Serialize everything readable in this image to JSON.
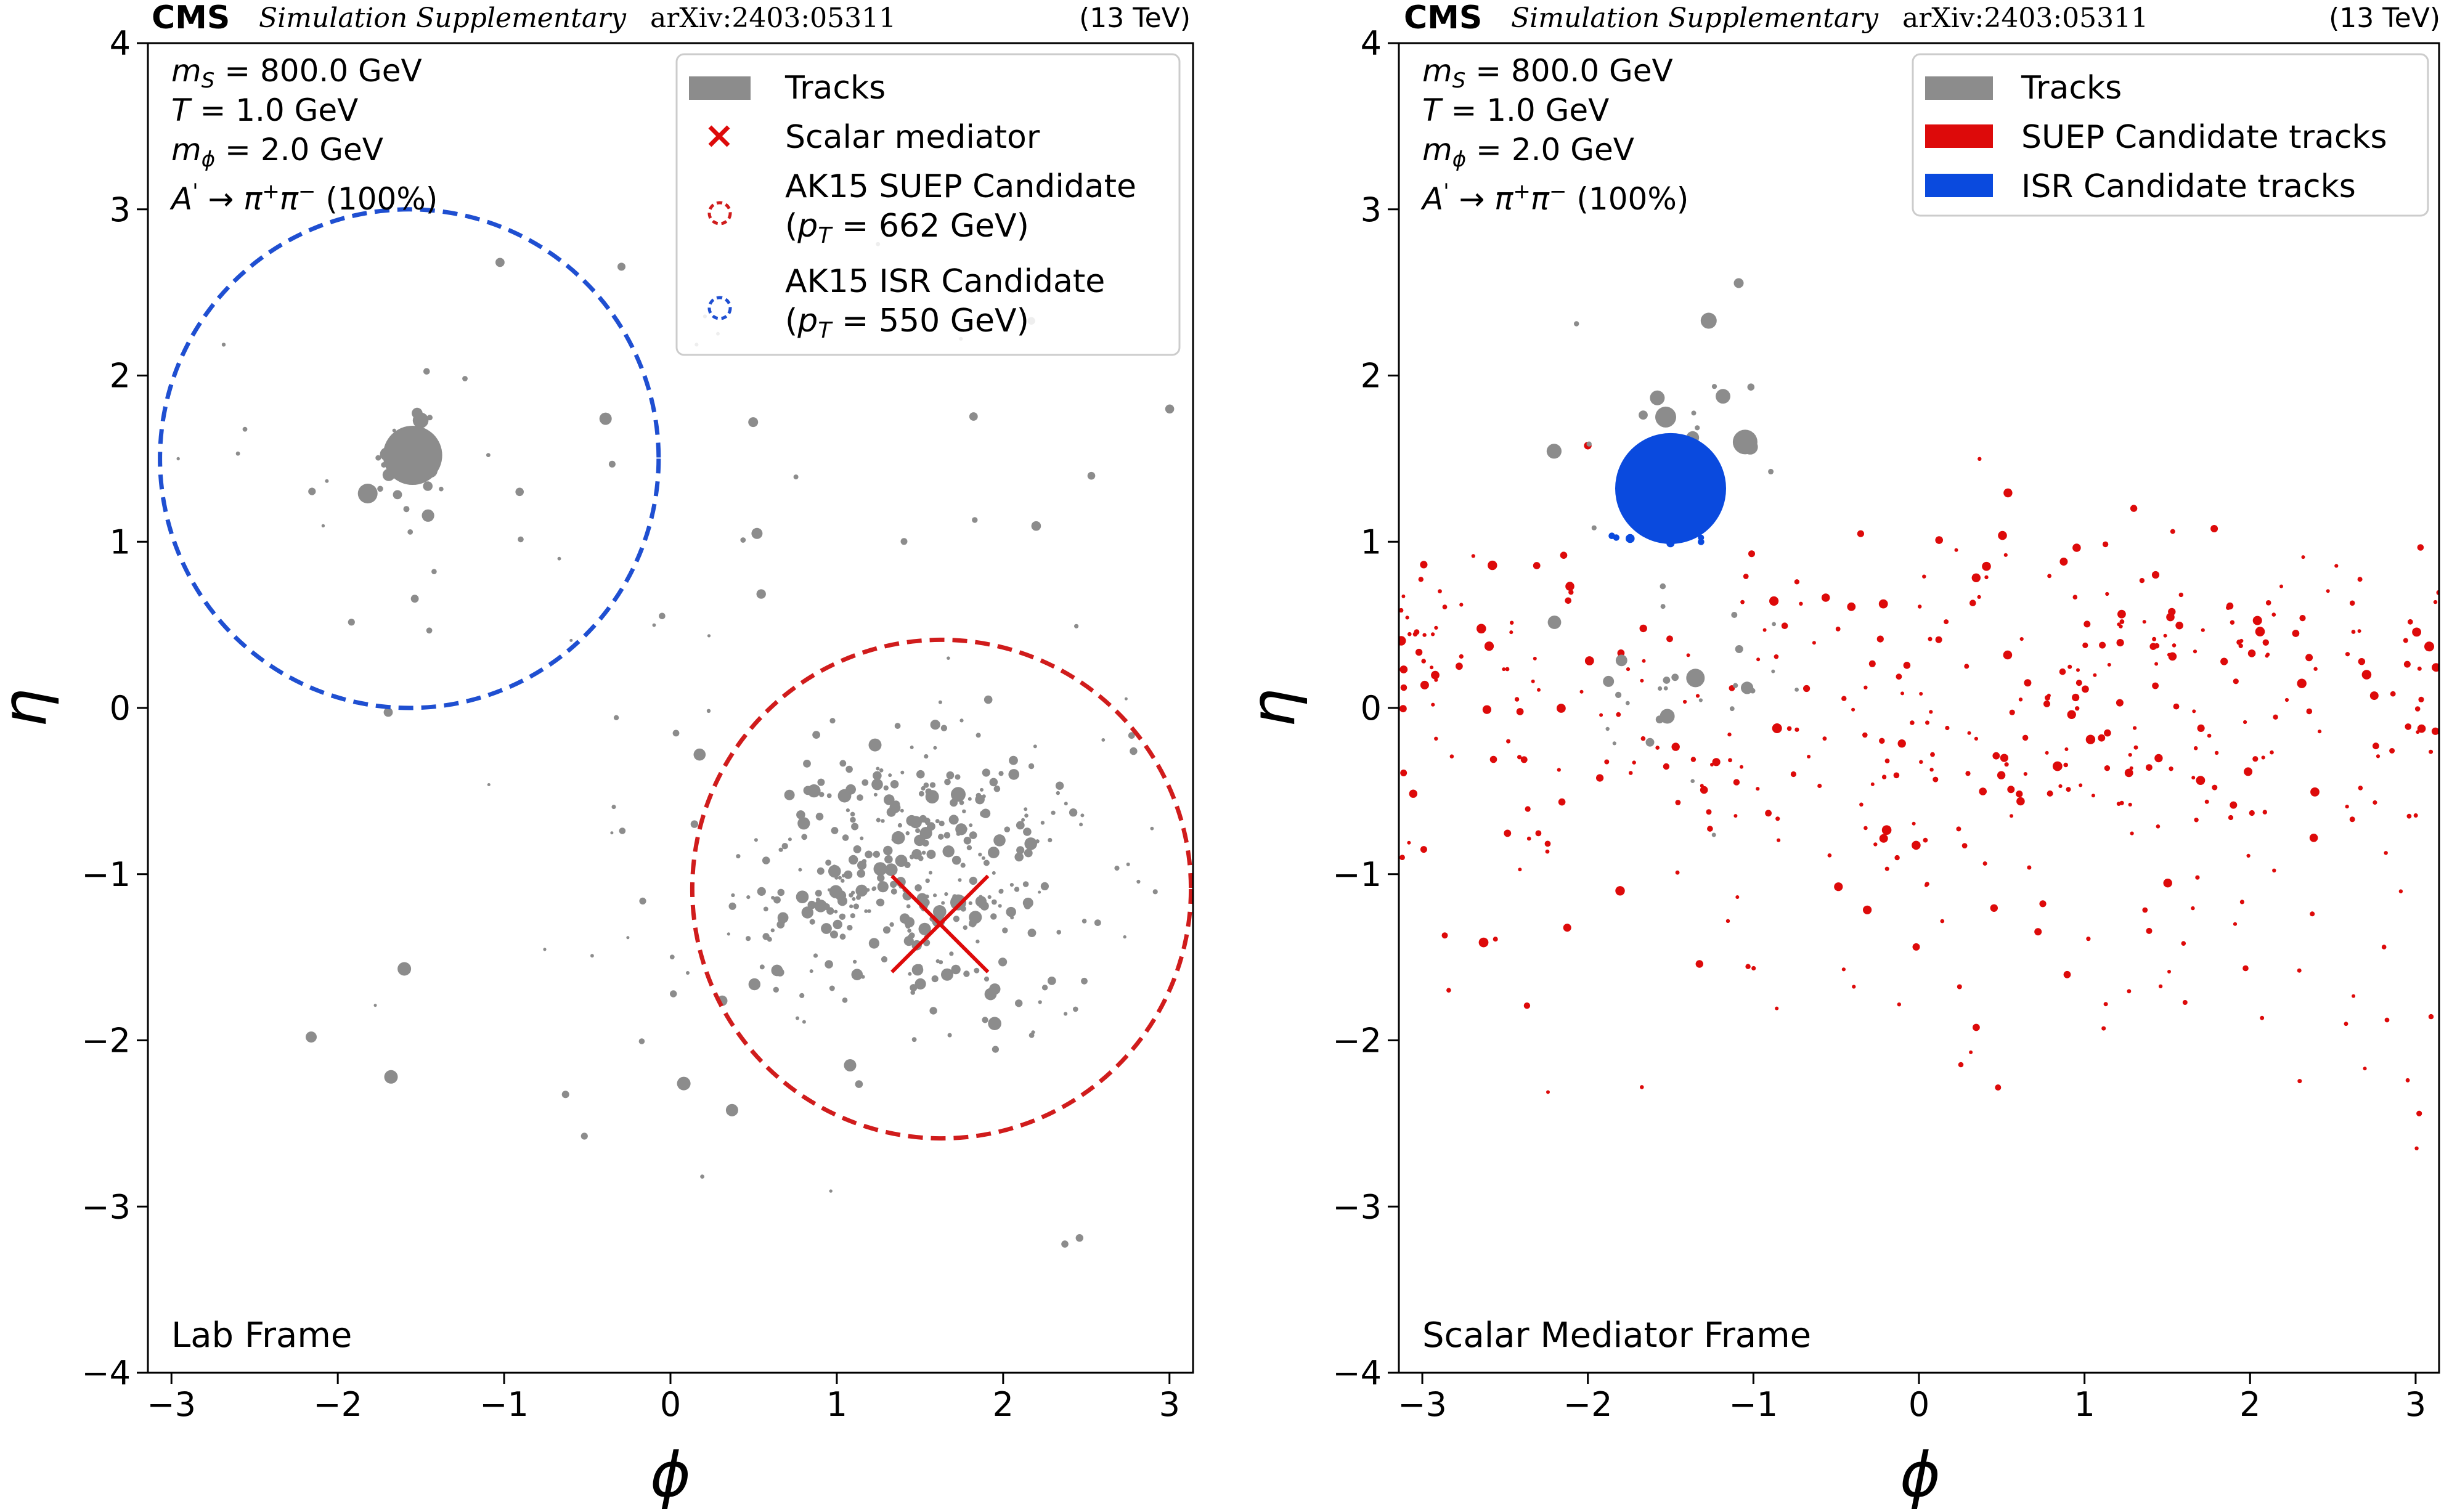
{
  "colors": {
    "tracks": "#8c8c8c",
    "suep": "#dd0a0a",
    "isr": "#0a4ade",
    "suep_circle": "#d01c1c",
    "isr_circle": "#1f4fd1"
  },
  "chart_data": [
    {
      "type": "scatter",
      "header_left": "CMS",
      "header_mid": "Simulation Supplementary",
      "header_arxiv": "arXiv:2403:05311",
      "header_right": "(13 TeV)",
      "xlabel": "ϕ",
      "ylabel": "η",
      "xlim": [
        -3.1416,
        3.1416
      ],
      "ylim": [
        -4,
        4
      ],
      "xticks": [
        -3,
        -2,
        -1,
        0,
        1,
        2,
        3
      ],
      "yticks": [
        -4,
        -3,
        -2,
        -1,
        0,
        1,
        2,
        3,
        4
      ],
      "xticklabels": [
        "−3",
        "−2",
        "−1",
        "0",
        "1",
        "2",
        "3"
      ],
      "yticklabels": [
        "−4",
        "−3",
        "−2",
        "−1",
        "0",
        "1",
        "2",
        "3",
        "4"
      ],
      "grid": false,
      "info": [
        "mS = 800.0 GeV",
        "T = 1.0 GeV",
        "mϕ = 2.0 GeV",
        "A' → π⁺π⁻ (100%)"
      ],
      "frame_label": "Lab Frame",
      "legend_position": "top-right",
      "legend": [
        {
          "label": "Tracks",
          "kind": "patch",
          "color": "#8c8c8c"
        },
        {
          "label": "Scalar mediator",
          "kind": "cross",
          "color": "#dd0a0a"
        },
        {
          "label": "AK15 SUEP Candidate",
          "sub": "(pT = 662 GeV)",
          "kind": "dashed-circle",
          "color": "#d01c1c"
        },
        {
          "label": "AK15 ISR Candidate",
          "sub": "(pT = 550 GeV)",
          "kind": "dashed-circle",
          "color": "#1f4fd1"
        }
      ],
      "circles": [
        {
          "name": "AK15 ISR Candidate",
          "phi": -1.57,
          "eta": 1.5,
          "r": 1.5
        },
        {
          "name": "AK15 SUEP Candidate",
          "phi": 1.63,
          "eta": -1.09,
          "r": 1.5
        }
      ],
      "mediator": {
        "phi": 1.62,
        "eta": -1.3
      },
      "seed": 11,
      "clusters": [
        {
          "name": "Tracks",
          "group": "tracks",
          "n": 360,
          "phi": 1.5,
          "eta": -1.0,
          "sphi": 0.55,
          "seta": 0.42,
          "rmin": 3,
          "rmax": 11
        },
        {
          "name": "Tracks",
          "group": "tracks",
          "n": 26,
          "phi": -1.55,
          "eta": 1.5,
          "sphi": 0.12,
          "seta": 0.12,
          "rmin": 3,
          "rmax": 13
        },
        {
          "name": "Tracks",
          "group": "tracks",
          "n": 14,
          "phi": -1.55,
          "eta": 1.5,
          "sphi": 0.45,
          "seta": 0.45,
          "rmin": 3,
          "rmax": 7
        },
        {
          "name": "Tracks",
          "group": "tracks",
          "n": 70,
          "phi": 0.0,
          "eta": 0.0,
          "sphi": 1.8,
          "seta": 1.8,
          "rmin": 2.5,
          "rmax": 8
        }
      ],
      "tracks_big": [
        {
          "phi": -1.55,
          "eta": 1.52,
          "r": 48
        },
        {
          "phi": -1.82,
          "eta": 1.29,
          "r": 16
        },
        {
          "phi": 1.73,
          "eta": -1.17,
          "r": 13
        },
        {
          "phi": 1.73,
          "eta": -0.52,
          "r": 12
        },
        {
          "phi": -1.6,
          "eta": -1.57,
          "r": 11
        },
        {
          "phi": -1.68,
          "eta": -2.22,
          "r": 11
        },
        {
          "phi": 0.08,
          "eta": -2.26,
          "r": 11
        },
        {
          "phi": 0.37,
          "eta": -2.42,
          "r": 10
        },
        {
          "phi": 1.08,
          "eta": -2.15,
          "r": 10
        },
        {
          "phi": 0.52,
          "eta": 1.05,
          "r": 9
        },
        {
          "phi": -0.39,
          "eta": 1.74,
          "r": 10
        },
        {
          "phi": -2.16,
          "eta": -1.98,
          "r": 9
        },
        {
          "phi": 1.35,
          "eta": -0.6,
          "r": 9
        }
      ]
    },
    {
      "type": "scatter",
      "header_left": "CMS",
      "header_mid": "Simulation Supplementary",
      "header_arxiv": "arXiv:2403:05311",
      "header_right": "(13 TeV)",
      "xlabel": "ϕ",
      "ylabel": "η",
      "xlim": [
        -3.1416,
        3.1416
      ],
      "ylim": [
        -4,
        4
      ],
      "xticks": [
        -3,
        -2,
        -1,
        0,
        1,
        2,
        3
      ],
      "yticks": [
        -4,
        -3,
        -2,
        -1,
        0,
        1,
        2,
        3,
        4
      ],
      "xticklabels": [
        "−3",
        "−2",
        "−1",
        "0",
        "1",
        "2",
        "3"
      ],
      "yticklabels": [
        "−4",
        "−3",
        "−2",
        "−1",
        "0",
        "1",
        "2",
        "3",
        "4"
      ],
      "grid": false,
      "info": [
        "mS = 800.0 GeV",
        "T = 1.0 GeV",
        "mϕ = 2.0 GeV",
        "A' → π⁺π⁻ (100%)"
      ],
      "frame_label": "Scalar Mediator Frame",
      "legend_position": "top-right",
      "legend": [
        {
          "label": "Tracks",
          "kind": "patch",
          "color": "#8c8c8c"
        },
        {
          "label": "SUEP Candidate tracks",
          "kind": "patch",
          "color": "#dd0a0a"
        },
        {
          "label": "ISR Candidate tracks",
          "kind": "patch",
          "color": "#0a4ade"
        }
      ],
      "seed": 29,
      "clusters": [
        {
          "name": "SUEP Candidate tracks",
          "group": "suep",
          "n": 300,
          "phi": 0.3,
          "eta": -0.2,
          "sphi": 1.75,
          "seta": 0.6,
          "rmin": 3,
          "rmax": 8
        },
        {
          "name": "SUEP Candidate tracks",
          "group": "suep",
          "n": 45,
          "phi": 0.3,
          "eta": -1.6,
          "sphi": 1.9,
          "seta": 0.6,
          "rmin": 3,
          "rmax": 6
        },
        {
          "name": "SUEP Candidate tracks",
          "group": "suep",
          "n": 50,
          "phi": 1.8,
          "eta": 0.6,
          "sphi": 0.6,
          "seta": 0.3,
          "rmin": 3,
          "rmax": 8
        },
        {
          "name": "SUEP Candidate tracks",
          "group": "suep",
          "n": 40,
          "phi": -2.9,
          "eta": 0.4,
          "sphi": 0.25,
          "seta": 0.3,
          "rmin": 3,
          "rmax": 8
        },
        {
          "name": "Tracks",
          "group": "tracks",
          "n": 24,
          "phi": -1.55,
          "eta": 1.6,
          "sphi": 0.35,
          "seta": 0.45,
          "rmin": 4,
          "rmax": 13
        },
        {
          "name": "Tracks",
          "group": "tracks",
          "n": 26,
          "phi": -1.2,
          "eta": 0.05,
          "sphi": 0.55,
          "seta": 0.4,
          "rmin": 3,
          "rmax": 11
        },
        {
          "name": "ISR Candidate tracks",
          "group": "isr",
          "n": 6,
          "phi": -1.55,
          "eta": 1.0,
          "sphi": 0.2,
          "seta": 0.04,
          "rmin": 5,
          "rmax": 8
        }
      ],
      "tracks_big": [
        {
          "phi": -1.5,
          "eta": 1.32,
          "r": 90,
          "group": "isr"
        },
        {
          "phi": -1.05,
          "eta": 1.6,
          "r": 20,
          "group": "tracks"
        },
        {
          "phi": -1.27,
          "eta": 2.33,
          "r": 13,
          "group": "tracks"
        },
        {
          "phi": -1.53,
          "eta": 1.75,
          "r": 17,
          "group": "tracks"
        },
        {
          "phi": -1.35,
          "eta": 0.18,
          "r": 15,
          "group": "tracks"
        },
        {
          "phi": -1.52,
          "eta": -0.05,
          "r": 12,
          "group": "tracks"
        }
      ]
    }
  ]
}
